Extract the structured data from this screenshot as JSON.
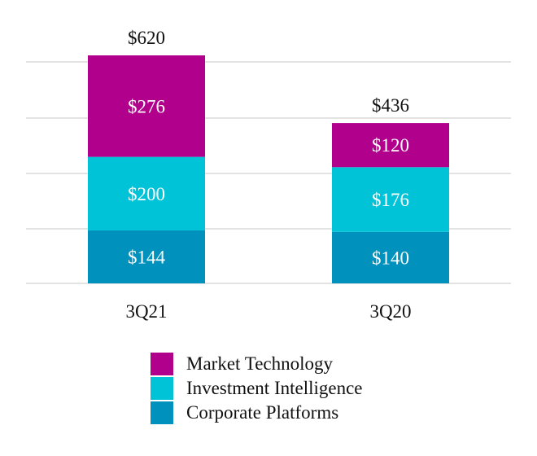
{
  "chart_data": {
    "type": "bar",
    "stacked": true,
    "categories": [
      "3Q21",
      "3Q20"
    ],
    "series": [
      {
        "name": "Corporate Platforms",
        "values": [
          144,
          140
        ],
        "labels": [
          "$144",
          "$140"
        ],
        "color": "#0091BD"
      },
      {
        "name": "Investment Intelligence",
        "values": [
          200,
          176
        ],
        "labels": [
          "$200",
          "$176"
        ],
        "color": "#00C3D7"
      },
      {
        "name": "Market Technology",
        "values": [
          276,
          120
        ],
        "labels": [
          "$276",
          "$120"
        ],
        "color": "#B0008C"
      }
    ],
    "totals": [
      620,
      436
    ],
    "total_labels": [
      "$620",
      "$436"
    ],
    "ylim": [
      0,
      620
    ],
    "grid": true,
    "legend_position": "bottom",
    "title": "",
    "xlabel": "",
    "ylabel": ""
  },
  "legend": {
    "items": [
      {
        "label": "Market Technology",
        "color": "#B0008C"
      },
      {
        "label": "Investment Intelligence",
        "color": "#00C3D7"
      },
      {
        "label": "Corporate Platforms",
        "color": "#0091BD"
      }
    ]
  }
}
